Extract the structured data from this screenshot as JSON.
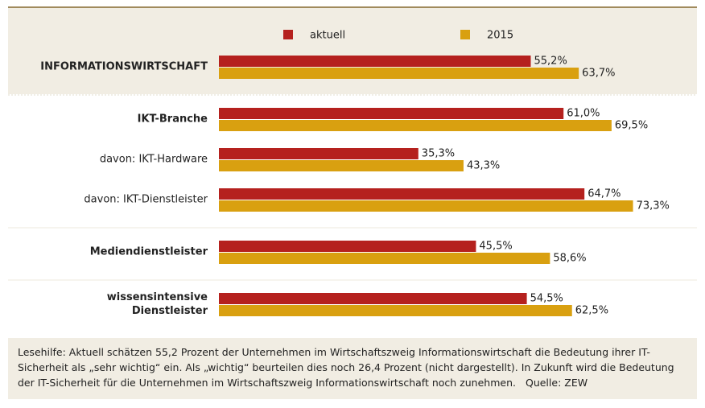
{
  "chart_data": {
    "type": "bar",
    "orientation": "horizontal",
    "categories": [
      "INFORMATIONSWIRTSCHAFT",
      "IKT-Branche",
      "davon: IKT-Hardware",
      "davon: IKT-Dienstleister",
      "Mediendienstleister",
      "wissensintensive Dienstleister"
    ],
    "series": [
      {
        "name": "aktuell",
        "color": "#b5211e",
        "values": [
          55.2,
          61.0,
          35.3,
          64.7,
          45.5,
          54.5
        ],
        "value_labels": [
          "55,2%",
          "61,0%",
          "35,3%",
          "64,7%",
          "45,5%",
          "54,5%"
        ]
      },
      {
        "name": "2015",
        "color": "#d9a010",
        "values": [
          63.7,
          69.5,
          43.3,
          73.3,
          58.6,
          62.5
        ],
        "value_labels": [
          "63,7%",
          "69,5%",
          "43,3%",
          "73,3%",
          "58,6%",
          "62,5%"
        ]
      }
    ],
    "note": "Lesehilfe: Aktuell schätzen 55,2 Prozent der Unternehmen im Wirtschaftszweig Informationswirtschaft die Bedeutung ihrer IT-Sicherheit als „sehr wichtig“ ein. Als „wichtig“ beurteilen dies noch 26,4 Prozent (nicht dargestellt). In Zukunft wird die Bedeutung der IT-Sicherheit für die Unternehmen im Wirtschaftszweig Informationswirtschaft noch zunehmen.",
    "source": "Quelle: ZEW"
  }
}
